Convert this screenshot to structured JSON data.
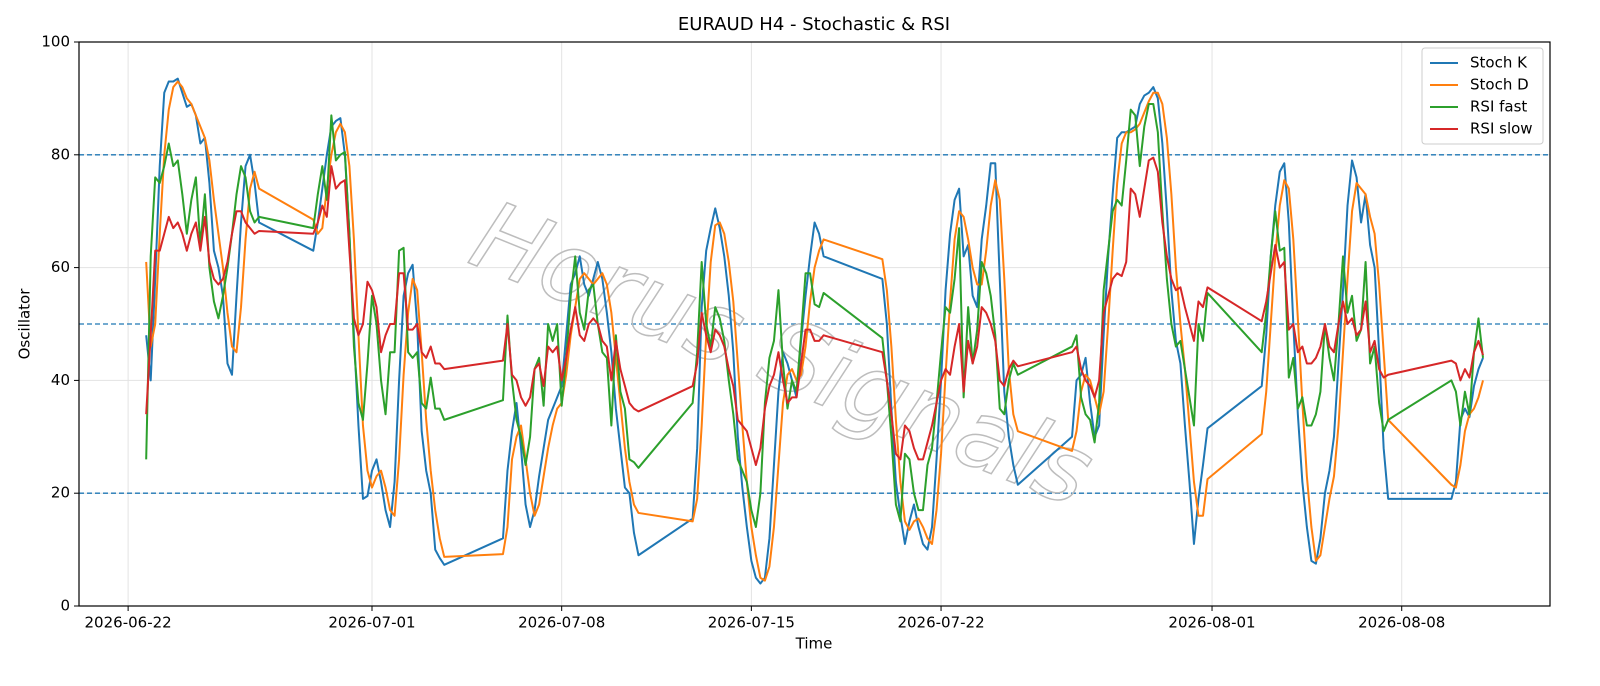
{
  "chart_data": {
    "type": "line",
    "title": "EURAUD H4 - Stochastic & RSI",
    "x_label": "Time",
    "y_label": "Oscillator",
    "watermark": "Horus Signals",
    "x": [
      "2026-06-22 16:00",
      "2026-06-22 20:00",
      "2026-06-23 00:00",
      "2026-06-23 04:00",
      "2026-06-23 08:00",
      "2026-06-23 12:00",
      "2026-06-23 16:00",
      "2026-06-23 20:00",
      "2026-06-24 00:00",
      "2026-06-24 04:00",
      "2026-06-24 08:00",
      "2026-06-24 12:00",
      "2026-06-24 16:00",
      "2026-06-24 20:00",
      "2026-06-25 00:00",
      "2026-06-25 04:00",
      "2026-06-25 08:00",
      "2026-06-25 12:00",
      "2026-06-25 16:00",
      "2026-06-25 20:00",
      "2026-06-26 00:00",
      "2026-06-26 04:00",
      "2026-06-26 08:00",
      "2026-06-26 12:00",
      "2026-06-26 16:00",
      "2026-06-26 20:00",
      "2026-06-28 20:00",
      "2026-06-29 00:00",
      "2026-06-29 04:00",
      "2026-06-29 08:00",
      "2026-06-29 12:00",
      "2026-06-29 16:00",
      "2026-06-29 20:00",
      "2026-06-30 00:00",
      "2026-06-30 04:00",
      "2026-06-30 08:00",
      "2026-06-30 12:00",
      "2026-06-30 16:00",
      "2026-06-30 20:00",
      "2026-07-01 00:00",
      "2026-07-01 04:00",
      "2026-07-01 08:00",
      "2026-07-01 12:00",
      "2026-07-01 16:00",
      "2026-07-01 20:00",
      "2026-07-02 00:00",
      "2026-07-02 04:00",
      "2026-07-02 08:00",
      "2026-07-02 12:00",
      "2026-07-02 16:00",
      "2026-07-02 20:00",
      "2026-07-03 00:00",
      "2026-07-03 04:00",
      "2026-07-03 08:00",
      "2026-07-03 12:00",
      "2026-07-03 16:00",
      "2026-07-05 20:00",
      "2026-07-06 00:00",
      "2026-07-06 04:00",
      "2026-07-06 08:00",
      "2026-07-06 12:00",
      "2026-07-06 16:00",
      "2026-07-06 20:00",
      "2026-07-07 00:00",
      "2026-07-07 04:00",
      "2026-07-07 08:00",
      "2026-07-07 12:00",
      "2026-07-07 16:00",
      "2026-07-07 20:00",
      "2026-07-08 00:00",
      "2026-07-08 04:00",
      "2026-07-08 08:00",
      "2026-07-08 12:00",
      "2026-07-08 16:00",
      "2026-07-08 20:00",
      "2026-07-09 00:00",
      "2026-07-09 04:00",
      "2026-07-09 08:00",
      "2026-07-09 12:00",
      "2026-07-09 16:00",
      "2026-07-09 20:00",
      "2026-07-10 00:00",
      "2026-07-10 04:00",
      "2026-07-10 08:00",
      "2026-07-10 12:00",
      "2026-07-10 16:00",
      "2026-07-10 20:00",
      "2026-07-12 20:00",
      "2026-07-13 00:00",
      "2026-07-13 04:00",
      "2026-07-13 08:00",
      "2026-07-13 12:00",
      "2026-07-13 16:00",
      "2026-07-13 20:00",
      "2026-07-14 00:00",
      "2026-07-14 04:00",
      "2026-07-14 08:00",
      "2026-07-14 12:00",
      "2026-07-14 16:00",
      "2026-07-14 20:00",
      "2026-07-15 00:00",
      "2026-07-15 04:00",
      "2026-07-15 08:00",
      "2026-07-15 12:00",
      "2026-07-15 16:00",
      "2026-07-15 20:00",
      "2026-07-16 00:00",
      "2026-07-16 04:00",
      "2026-07-16 08:00",
      "2026-07-16 12:00",
      "2026-07-16 16:00",
      "2026-07-16 20:00",
      "2026-07-17 00:00",
      "2026-07-17 04:00",
      "2026-07-17 08:00",
      "2026-07-17 12:00",
      "2026-07-17 16:00",
      "2026-07-19 20:00",
      "2026-07-20 00:00",
      "2026-07-20 04:00",
      "2026-07-20 08:00",
      "2026-07-20 12:00",
      "2026-07-20 16:00",
      "2026-07-20 20:00",
      "2026-07-21 00:00",
      "2026-07-21 04:00",
      "2026-07-21 08:00",
      "2026-07-21 12:00",
      "2026-07-21 16:00",
      "2026-07-21 20:00",
      "2026-07-22 00:00",
      "2026-07-22 04:00",
      "2026-07-22 08:00",
      "2026-07-22 12:00",
      "2026-07-22 16:00",
      "2026-07-22 20:00",
      "2026-07-23 00:00",
      "2026-07-23 04:00",
      "2026-07-23 08:00",
      "2026-07-23 12:00",
      "2026-07-23 16:00",
      "2026-07-23 20:00",
      "2026-07-24 00:00",
      "2026-07-24 04:00",
      "2026-07-24 08:00",
      "2026-07-24 12:00",
      "2026-07-24 16:00",
      "2026-07-24 20:00",
      "2026-07-26 20:00",
      "2026-07-27 00:00",
      "2026-07-27 04:00",
      "2026-07-27 08:00",
      "2026-07-27 12:00",
      "2026-07-27 16:00",
      "2026-07-27 20:00",
      "2026-07-28 00:00",
      "2026-07-28 04:00",
      "2026-07-28 08:00",
      "2026-07-28 12:00",
      "2026-07-28 16:00",
      "2026-07-28 20:00",
      "2026-07-29 00:00",
      "2026-07-29 04:00",
      "2026-07-29 08:00",
      "2026-07-29 12:00",
      "2026-07-29 16:00",
      "2026-07-29 20:00",
      "2026-07-30 00:00",
      "2026-07-30 04:00",
      "2026-07-30 08:00",
      "2026-07-30 12:00",
      "2026-07-30 16:00",
      "2026-07-30 20:00",
      "2026-07-31 00:00",
      "2026-07-31 04:00",
      "2026-07-31 08:00",
      "2026-07-31 12:00",
      "2026-07-31 16:00",
      "2026-07-31 20:00",
      "2026-08-02 20:00",
      "2026-08-03 00:00",
      "2026-08-03 04:00",
      "2026-08-03 08:00",
      "2026-08-03 12:00",
      "2026-08-03 16:00",
      "2026-08-03 20:00",
      "2026-08-04 00:00",
      "2026-08-04 04:00",
      "2026-08-04 08:00",
      "2026-08-04 12:00",
      "2026-08-04 16:00",
      "2026-08-04 20:00",
      "2026-08-05 00:00",
      "2026-08-05 04:00",
      "2026-08-05 08:00",
      "2026-08-05 12:00",
      "2026-08-05 16:00",
      "2026-08-05 20:00",
      "2026-08-06 00:00",
      "2026-08-06 04:00",
      "2026-08-06 08:00",
      "2026-08-06 12:00",
      "2026-08-06 16:00",
      "2026-08-06 20:00",
      "2026-08-07 00:00",
      "2026-08-07 04:00",
      "2026-08-07 08:00",
      "2026-08-07 12:00",
      "2026-08-09 20:00",
      "2026-08-10 00:00",
      "2026-08-10 04:00",
      "2026-08-10 08:00",
      "2026-08-10 12:00",
      "2026-08-10 16:00",
      "2026-08-10 20:00",
      "2026-08-11 00:00"
    ],
    "series": [
      {
        "name": "Stoch K",
        "color": "#1f77b4",
        "values": [
          48,
          40,
          58,
          78,
          91,
          93,
          93,
          93.5,
          91,
          88.5,
          89,
          87,
          82,
          83,
          75,
          63,
          60,
          55,
          43,
          41,
          55,
          68,
          78,
          80,
          75,
          68,
          63,
          68,
          74,
          80,
          85,
          86,
          86.5,
          80,
          66,
          48,
          32,
          19,
          19.5,
          24,
          26,
          22,
          17,
          14,
          22,
          40,
          55,
          59,
          60.5,
          50,
          31,
          24,
          20,
          10,
          8.5,
          7.3,
          12,
          24,
          31,
          36,
          28,
          18,
          14,
          17,
          23,
          28,
          33,
          35,
          37,
          39,
          48,
          57,
          59,
          62,
          57,
          55,
          58,
          61,
          58,
          52,
          45,
          35,
          28,
          21,
          20,
          13,
          9,
          15.5,
          28,
          53,
          63,
          67,
          70.5,
          67,
          62,
          55,
          45,
          30,
          21,
          14,
          8,
          5,
          4,
          5,
          12,
          25,
          38,
          45,
          43,
          40,
          37,
          47,
          55,
          62,
          68,
          66,
          62,
          58,
          50,
          35,
          22,
          16,
          11,
          15,
          18,
          14,
          11,
          10,
          14,
          26,
          40,
          56,
          66,
          72,
          74,
          62,
          64,
          55,
          53,
          65,
          71,
          78.5,
          78.5,
          58,
          38,
          30,
          25,
          21.5,
          30,
          40,
          41,
          44,
          36,
          30,
          32,
          48,
          62,
          73,
          83,
          84,
          84,
          84.5,
          85,
          89,
          90.5,
          91,
          92,
          90,
          82,
          70,
          56,
          47,
          43,
          32,
          22,
          11,
          19,
          25,
          31.5,
          39,
          48,
          62,
          71,
          77,
          78.5,
          68,
          50,
          34,
          22,
          14,
          8,
          7.5,
          12,
          20,
          24,
          30,
          43,
          56,
          71,
          79,
          76,
          68,
          73,
          64,
          60,
          45,
          28,
          19,
          19,
          22,
          33,
          35,
          33.5,
          39,
          42,
          44
        ]
      },
      {
        "name": "Stoch D",
        "color": "#ff7f0e",
        "values": [
          61,
          46,
          50,
          66,
          80,
          88,
          92,
          93,
          92,
          90,
          89,
          87,
          85,
          83,
          79,
          72,
          66,
          60,
          52,
          46,
          45,
          53,
          65,
          74,
          77,
          74,
          68.5,
          66,
          67,
          74,
          80,
          84,
          85.5,
          84,
          78,
          65,
          48,
          32,
          24,
          21,
          23,
          24,
          21,
          17,
          16,
          26,
          41,
          52,
          58,
          56,
          45,
          33,
          24,
          17,
          12,
          8.7,
          9.2,
          14,
          26,
          30,
          32,
          26,
          20,
          16,
          18,
          23,
          28,
          32,
          35,
          36,
          41,
          48,
          53,
          58,
          59,
          58,
          57,
          58,
          59,
          57,
          52,
          44,
          36,
          28,
          22,
          18,
          16.5,
          15,
          19,
          32,
          48,
          61,
          67.5,
          68,
          66,
          61,
          54,
          43,
          32,
          22,
          14,
          9,
          5,
          4.5,
          7,
          14,
          25,
          36,
          41,
          42,
          40,
          41,
          46,
          54,
          60,
          63,
          65,
          61.5,
          56,
          46,
          33,
          22,
          15,
          13.5,
          15,
          15.5,
          14,
          12,
          11,
          17,
          27,
          41,
          54,
          65,
          70,
          69,
          65,
          60,
          57,
          57,
          63,
          71,
          75.5,
          72,
          58,
          42,
          34,
          31,
          27.5,
          31,
          38,
          41,
          40,
          37,
          34,
          38,
          50,
          63,
          75,
          82,
          84,
          84,
          84.5,
          85.5,
          87.5,
          89.5,
          91,
          91,
          89,
          83,
          73,
          60,
          50,
          42,
          32,
          22,
          16,
          16,
          22.5,
          30.5,
          38,
          50,
          62,
          71,
          75.5,
          74,
          65,
          51,
          36,
          23,
          14,
          8,
          9,
          14,
          19,
          23,
          32,
          45,
          58,
          70,
          75,
          74,
          73,
          69,
          66,
          57,
          45,
          33,
          21.5,
          21,
          25,
          31,
          34,
          35,
          37,
          40
        ]
      },
      {
        "name": "RSI fast",
        "color": "#2ca02c",
        "values": [
          26,
          62,
          76,
          75,
          78,
          82,
          78,
          79,
          73,
          66,
          72,
          76,
          64,
          73,
          60,
          54,
          51,
          55,
          60,
          66,
          73,
          78,
          76,
          70,
          68,
          69,
          67,
          73,
          78,
          72,
          87,
          79,
          80,
          80.5,
          66,
          46,
          36,
          33,
          43,
          55,
          50,
          40,
          34,
          45,
          45,
          63,
          63.5,
          45,
          44,
          45,
          36,
          35,
          40.5,
          35,
          35,
          33,
          36.5,
          51.5,
          40,
          33,
          30,
          25,
          30,
          42,
          44,
          35.5,
          50,
          47,
          50,
          35.5,
          44,
          55,
          62,
          52,
          49,
          56,
          57,
          50,
          45,
          44,
          32,
          48,
          38,
          35,
          26,
          25.5,
          24.5,
          36,
          45,
          61,
          50,
          46,
          53,
          51,
          47,
          40,
          34,
          26,
          24,
          22,
          17,
          14,
          20,
          36,
          44,
          47,
          56,
          43,
          35,
          40,
          38,
          48,
          59,
          59,
          53.5,
          53,
          55.5,
          47.5,
          40,
          30,
          18,
          15,
          27,
          26,
          20,
          17,
          17,
          25,
          28,
          36,
          45,
          53,
          52,
          58,
          67,
          37,
          53,
          43,
          49,
          61,
          59,
          55,
          48,
          35,
          34,
          40,
          43,
          41,
          46,
          48,
          37,
          34,
          33,
          29,
          36,
          56,
          63,
          70,
          72,
          71,
          79,
          88,
          87,
          78,
          85,
          89,
          89,
          84,
          70,
          58,
          50,
          46,
          47,
          42,
          37,
          32,
          50,
          47,
          55.5,
          45,
          52,
          62,
          70,
          63,
          63.5,
          40.5,
          44,
          35,
          37,
          32,
          32,
          34,
          38,
          50,
          44,
          40,
          50,
          62,
          52,
          55,
          47,
          49,
          61,
          43,
          46,
          36,
          31,
          33,
          40,
          38,
          32,
          38,
          34,
          45,
          51,
          44
        ]
      },
      {
        "name": "RSI slow",
        "color": "#d62728",
        "values": [
          34,
          48,
          63,
          63,
          66,
          69,
          67,
          68,
          66,
          63,
          66,
          68,
          63,
          69,
          61,
          58,
          57,
          58,
          61,
          66,
          70,
          70,
          68,
          67,
          66,
          66.5,
          66,
          68,
          71,
          69,
          78,
          74,
          75,
          75.5,
          63,
          51,
          48,
          50,
          57.5,
          56,
          53,
          45,
          48,
          50,
          50,
          59,
          59,
          49,
          49,
          50,
          45,
          44,
          46,
          43,
          43,
          42,
          43.5,
          50,
          41,
          40,
          37,
          35.5,
          37,
          42,
          43,
          39,
          46,
          45,
          46,
          40,
          44,
          49,
          53,
          48,
          47,
          50,
          51,
          50,
          47,
          46,
          40,
          47,
          42,
          39,
          36,
          35,
          34.5,
          39,
          43,
          52,
          48,
          45,
          49,
          48,
          46,
          42,
          39,
          33,
          32,
          31,
          28,
          25,
          28,
          35,
          39,
          41,
          45,
          40,
          36,
          37,
          37,
          43,
          49,
          49,
          47,
          47,
          48,
          45,
          40,
          34,
          27,
          26,
          32,
          31,
          28,
          26,
          26,
          29,
          32,
          36,
          40,
          42,
          41,
          46,
          50,
          38,
          47,
          43,
          46,
          53,
          52,
          50,
          47,
          40,
          39,
          42,
          43.5,
          42.5,
          45,
          46,
          42,
          40,
          39,
          37,
          40,
          52,
          55,
          58,
          59,
          58.5,
          61,
          74,
          73,
          69,
          74,
          79,
          79.5,
          77,
          68,
          62,
          58,
          56,
          56.5,
          53,
          50,
          47,
          54,
          53,
          56.5,
          50.5,
          54,
          59,
          64,
          60,
          61,
          49,
          50,
          45,
          46,
          43,
          43,
          44,
          46,
          50,
          46,
          45,
          50,
          54,
          50,
          51,
          48,
          49,
          54,
          45,
          47,
          42,
          40.5,
          41,
          43.5,
          43,
          40,
          42,
          40.5,
          45,
          47,
          44.5
        ]
      }
    ],
    "xlim": [
      "2026-06-20 04:30",
      "2026-08-13 11:20"
    ],
    "xticks": [
      "2026-06-22",
      "2026-07-01",
      "2026-07-08",
      "2026-07-15",
      "2026-07-22",
      "2026-08-01",
      "2026-08-08"
    ],
    "ylim": [
      0,
      100
    ],
    "yticks": [
      0,
      20,
      40,
      60,
      80,
      100
    ],
    "hlines": [
      20,
      50,
      80
    ],
    "hline_color": "#1f77b4",
    "grid": true,
    "legend": "upper right"
  }
}
